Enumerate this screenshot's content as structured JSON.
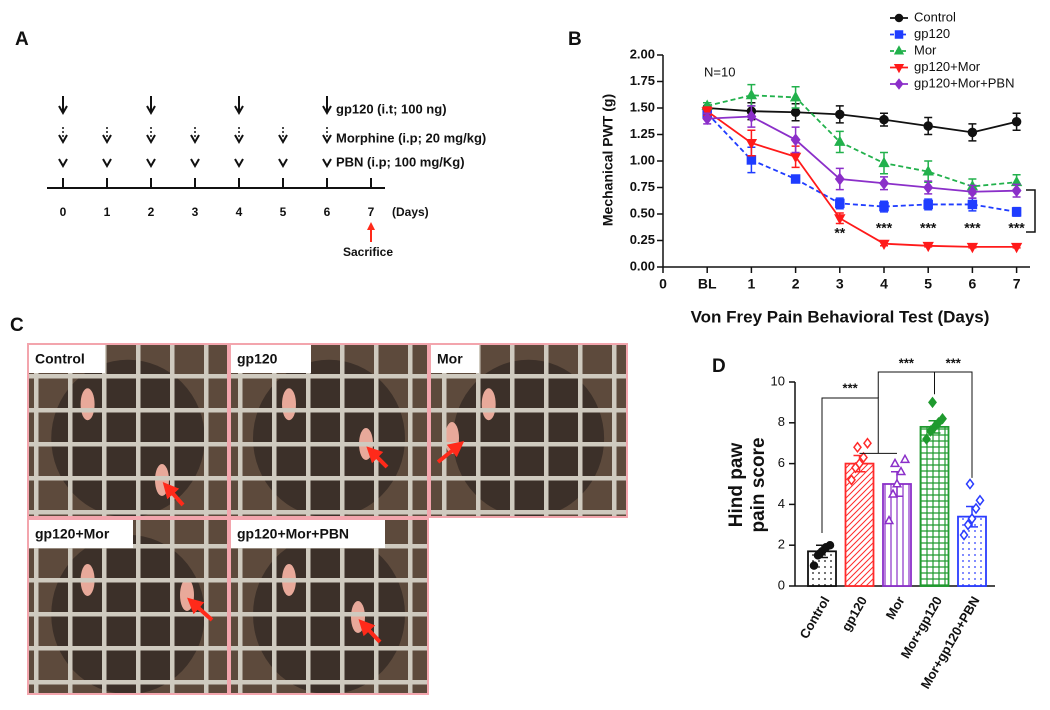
{
  "panel_labels": [
    "A",
    "B",
    "C",
    "D"
  ],
  "timeline": {
    "days": [
      0,
      1,
      2,
      3,
      4,
      5,
      6,
      7
    ],
    "days_unit": "(Days)",
    "rows": [
      {
        "label": "gp120 (i.t; 100 ng)",
        "days": [
          0,
          2,
          4,
          6
        ]
      },
      {
        "label": "Morphine (i.p; 20 mg/kg)",
        "days": [
          0,
          1,
          2,
          3,
          4,
          5,
          6
        ]
      },
      {
        "label": "PBN (i.p; 100 mg/Kg)",
        "days": [
          0,
          1,
          2,
          3,
          4,
          5,
          6
        ]
      }
    ],
    "sacrifice_day": 7,
    "sacrifice_label": "Sacrifice"
  },
  "photos": [
    {
      "label": "Control"
    },
    {
      "label": "gp120"
    },
    {
      "label": "Mor"
    },
    {
      "label": "gp120+Mor"
    },
    {
      "label": "gp120+Mor+PBN"
    }
  ],
  "chart_data": [
    {
      "type": "line",
      "xlabel": "Von Frey Pain Behavioral Test (Days)",
      "ylabel": "Mechanical PWT (g)",
      "annotation": "N=10",
      "categories": [
        "0",
        "BL",
        "1",
        "2",
        "3",
        "4",
        "5",
        "6",
        "7"
      ],
      "ylim": [
        0,
        2
      ],
      "yticks": [
        {
          "value": 0,
          "label": "0.00"
        },
        {
          "value": 0.25,
          "label": "0.25"
        },
        {
          "value": 0.5,
          "label": "0.50"
        },
        {
          "value": 0.75,
          "label": "0.75"
        },
        {
          "value": 1,
          "label": "1.00"
        },
        {
          "value": 1.25,
          "label": "1.25"
        },
        {
          "value": 1.5,
          "label": "1.50"
        },
        {
          "value": 1.75,
          "label": "1.75"
        },
        {
          "value": 2,
          "label": "2.00"
        }
      ],
      "series": [
        {
          "name": "Control",
          "color": "#111111",
          "marker": "circle",
          "dashed": false,
          "values": [
            null,
            1.5,
            1.47,
            1.46,
            1.44,
            1.39,
            1.33,
            1.27,
            1.37
          ],
          "errors": [
            null,
            0.05,
            0.08,
            0.08,
            0.08,
            0.06,
            0.08,
            0.08,
            0.08
          ]
        },
        {
          "name": "gp120",
          "color": "#1f3cff",
          "marker": "square",
          "dashed": true,
          "values": [
            null,
            1.45,
            1.01,
            0.83,
            0.6,
            0.57,
            0.59,
            0.59,
            0.52
          ],
          "errors": [
            null,
            0.05,
            0.12,
            0.02,
            0.05,
            0.05,
            0.05,
            0.06,
            0.04
          ]
        },
        {
          "name": "Mor",
          "color": "#22b14c",
          "marker": "triangle",
          "dashed": true,
          "values": [
            null,
            1.52,
            1.62,
            1.6,
            1.18,
            0.98,
            0.9,
            0.76,
            0.8
          ],
          "errors": [
            null,
            0.03,
            0.1,
            0.1,
            0.1,
            0.1,
            0.1,
            0.07,
            0.07
          ]
        },
        {
          "name": "gp120+Mor",
          "color": "#ff1a1a",
          "marker": "triangle-down",
          "dashed": false,
          "values": [
            null,
            1.47,
            1.17,
            1.04,
            0.46,
            0.22,
            0.2,
            0.19,
            0.19
          ],
          "errors": [
            null,
            0.04,
            0.12,
            0.1,
            0.05,
            0.02,
            0.01,
            0.01,
            0.01
          ]
        },
        {
          "name": "gp120+Mor+PBN",
          "color": "#8b2fc9",
          "marker": "diamond",
          "dashed": false,
          "values": [
            null,
            1.4,
            1.42,
            1.2,
            0.83,
            0.79,
            0.75,
            0.71,
            0.72
          ],
          "errors": [
            null,
            0.05,
            0.1,
            0.12,
            0.1,
            0.06,
            0.06,
            0.06,
            0.06
          ]
        }
      ],
      "significance": [
        {
          "category": "3",
          "label": "**"
        },
        {
          "category": "4",
          "label": "***"
        },
        {
          "category": "5",
          "label": "***"
        },
        {
          "category": "6",
          "label": "***"
        },
        {
          "category": "7",
          "label": "***"
        }
      ]
    },
    {
      "type": "bar",
      "ylabel": [
        "Hind paw",
        "pain score"
      ],
      "categories": [
        "Control",
        "gp120",
        "Mor",
        "Mor+gp120",
        "Mor+gp120+PBN"
      ],
      "values": [
        1.7,
        6.0,
        5.0,
        7.8,
        3.4
      ],
      "errors": [
        0.3,
        0.4,
        0.6,
        0.3,
        0.5
      ],
      "colors": [
        "#111111",
        "#ff2a2a",
        "#8b2fc9",
        "#1f9a2e",
        "#2a3cff"
      ],
      "hatch": [
        "dots",
        "diagonal",
        "vertical",
        "grid",
        "dots"
      ],
      "markers": [
        "circle",
        "diamond",
        "triangle",
        "diamond",
        "diamond"
      ],
      "points": [
        [
          1.0,
          1.5,
          1.7,
          1.9,
          2.0,
          1.6
        ],
        [
          5.2,
          5.8,
          6.0,
          6.3,
          7.0,
          6.8
        ],
        [
          3.2,
          4.5,
          5.0,
          5.6,
          6.2,
          6.0
        ],
        [
          7.2,
          7.6,
          7.8,
          8.0,
          8.2,
          9.0
        ],
        [
          2.5,
          3.0,
          3.3,
          3.8,
          4.2,
          5.0
        ]
      ],
      "ylim": [
        0,
        10
      ],
      "yticks": [
        0,
        2,
        4,
        6,
        8,
        10
      ],
      "comparisons": [
        "***",
        "***",
        "***"
      ]
    }
  ]
}
